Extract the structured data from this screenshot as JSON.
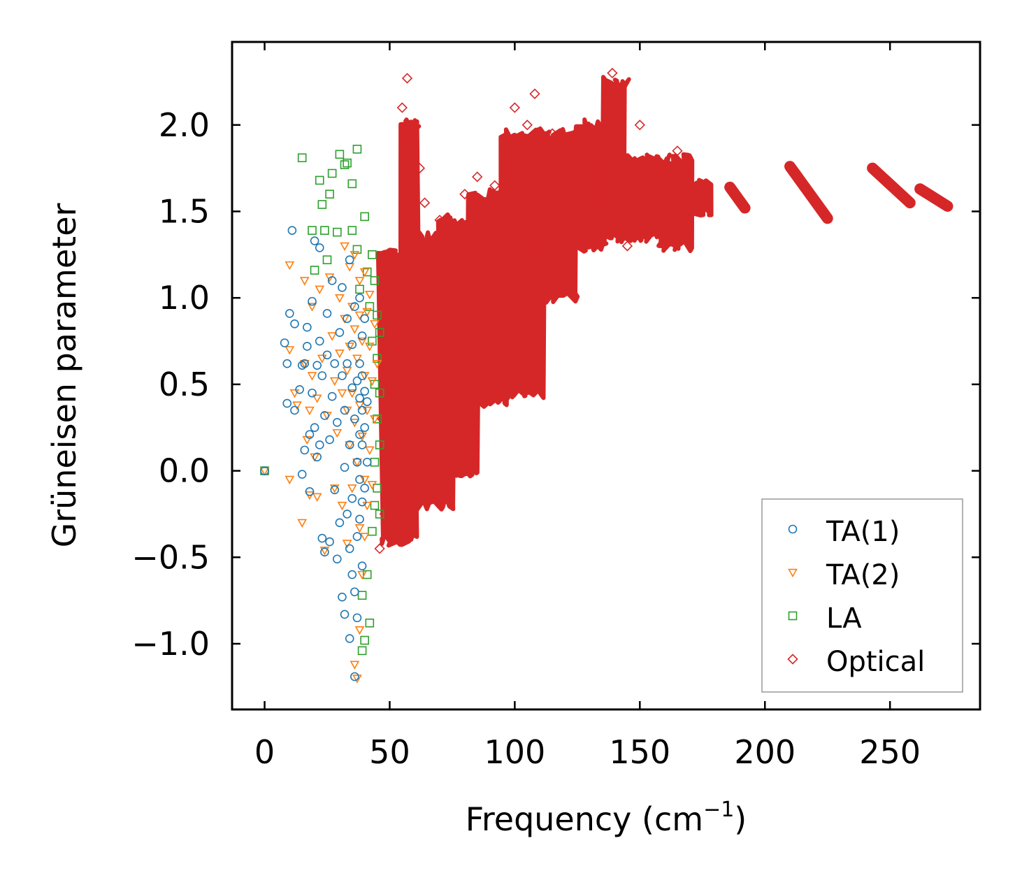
{
  "chart_data": {
    "type": "scatter",
    "title": "",
    "xlabel": "Frequency (cm",
    "xlabel_sup": "−1",
    "xlabel_suffix": ")",
    "ylabel": "Grüneisen parameter",
    "xlim": [
      -13,
      286
    ],
    "ylim": [
      -1.38,
      2.48
    ],
    "xticks": [
      0,
      50,
      100,
      150,
      200,
      250
    ],
    "xtick_labels": [
      "0",
      "50",
      "100",
      "150",
      "200",
      "250"
    ],
    "yticks": [
      -1.0,
      -0.5,
      0.0,
      0.5,
      1.0,
      1.5,
      2.0
    ],
    "ytick_labels": [
      "−1.0",
      "−0.5",
      "0.0",
      "0.5",
      "1.0",
      "1.5",
      "2.0"
    ],
    "grid": false,
    "legend_position": "bottom-right",
    "series": [
      {
        "name": "TA(1)",
        "marker": "circle",
        "color": "#1f77b4",
        "points": [
          [
            0,
            0
          ],
          [
            8,
            0.74
          ],
          [
            9,
            0.62
          ],
          [
            10,
            0.91
          ],
          [
            11,
            1.39
          ],
          [
            12,
            0.85
          ],
          [
            9,
            0.39
          ],
          [
            12,
            0.35
          ],
          [
            14,
            0.47
          ],
          [
            15,
            0.61
          ],
          [
            15,
            -0.02
          ],
          [
            16,
            0.12
          ],
          [
            16,
            0.62
          ],
          [
            17,
            0.83
          ],
          [
            17,
            0.72
          ],
          [
            18,
            0.21
          ],
          [
            18,
            -0.12
          ],
          [
            19,
            0.98
          ],
          [
            19,
            0.45
          ],
          [
            20,
            1.33
          ],
          [
            20,
            0.25
          ],
          [
            21,
            0.61
          ],
          [
            21,
            0.08
          ],
          [
            22,
            1.29
          ],
          [
            22,
            0.75
          ],
          [
            22,
            0.15
          ],
          [
            23,
            0.55
          ],
          [
            23,
            -0.39
          ],
          [
            24,
            -0.47
          ],
          [
            24,
            0.32
          ],
          [
            25,
            0.67
          ],
          [
            25,
            0.91
          ],
          [
            26,
            0.18
          ],
          [
            26,
            -0.41
          ],
          [
            27,
            0.43
          ],
          [
            27,
            1.1
          ],
          [
            28,
            -0.11
          ],
          [
            28,
            0.62
          ],
          [
            29,
            0.28
          ],
          [
            29,
            -0.51
          ],
          [
            30,
            0.8
          ],
          [
            30,
            -0.3
          ],
          [
            31,
            0.55
          ],
          [
            31,
            1.06
          ],
          [
            31,
            -0.73
          ],
          [
            32,
            0.35
          ],
          [
            32,
            0.02
          ],
          [
            32,
            -0.83
          ],
          [
            33,
            0.62
          ],
          [
            33,
            -0.25
          ],
          [
            33,
            0.88
          ],
          [
            34,
            0.15
          ],
          [
            34,
            -0.45
          ],
          [
            34,
            1.22
          ],
          [
            34,
            -0.97
          ],
          [
            35,
            0.48
          ],
          [
            35,
            0.73
          ],
          [
            35,
            -0.16
          ],
          [
            35,
            -0.6
          ],
          [
            36,
            0.3
          ],
          [
            36,
            0.95
          ],
          [
            36,
            -0.7
          ],
          [
            36,
            -1.19
          ],
          [
            37,
            0.52
          ],
          [
            37,
            0.05
          ],
          [
            37,
            -0.38
          ],
          [
            37,
            -0.85
          ],
          [
            38,
            0.62
          ],
          [
            38,
            0.42
          ],
          [
            38,
            0.21
          ],
          [
            38,
            -0.05
          ],
          [
            38,
            -0.28
          ],
          [
            38,
            1.0
          ],
          [
            39,
            0.55
          ],
          [
            39,
            0.35
          ],
          [
            39,
            0.15
          ],
          [
            39,
            -0.18
          ],
          [
            39,
            -0.55
          ],
          [
            39,
            0.78
          ],
          [
            40,
            0.46
          ],
          [
            40,
            0.25
          ],
          [
            40,
            -0.1
          ],
          [
            40,
            0.88
          ],
          [
            41,
            0.4
          ],
          [
            41,
            0.05
          ]
        ]
      },
      {
        "name": "TA(2)",
        "marker": "triangle-down",
        "color": "#ff7f0e",
        "points": [
          [
            0,
            0
          ],
          [
            10,
            1.19
          ],
          [
            10,
            0.7
          ],
          [
            10,
            -0.05
          ],
          [
            12,
            0.45
          ],
          [
            13,
            0.38
          ],
          [
            15,
            -0.3
          ],
          [
            16,
            1.1
          ],
          [
            16,
            0.62
          ],
          [
            17,
            0.18
          ],
          [
            18,
            -0.14
          ],
          [
            18,
            0.35
          ],
          [
            19,
            0.95
          ],
          [
            19,
            0.55
          ],
          [
            20,
            0.08
          ],
          [
            21,
            -0.15
          ],
          [
            21,
            0.42
          ],
          [
            22,
            1.05
          ],
          [
            23,
            0.65
          ],
          [
            24,
            -0.46
          ],
          [
            25,
            0.32
          ],
          [
            26,
            1.12
          ],
          [
            27,
            0.78
          ],
          [
            28,
            0.52
          ],
          [
            28,
            -0.1
          ],
          [
            29,
            0.22
          ],
          [
            30,
            1.0
          ],
          [
            30,
            0.68
          ],
          [
            31,
            0.45
          ],
          [
            31,
            -0.2
          ],
          [
            32,
            1.3
          ],
          [
            32,
            0.88
          ],
          [
            33,
            0.58
          ],
          [
            33,
            0.35
          ],
          [
            33,
            -0.42
          ],
          [
            34,
            1.18
          ],
          [
            34,
            0.72
          ],
          [
            34,
            0.15
          ],
          [
            35,
            0.95
          ],
          [
            35,
            0.45
          ],
          [
            35,
            -0.1
          ],
          [
            36,
            1.25
          ],
          [
            36,
            0.82
          ],
          [
            36,
            0.28
          ],
          [
            36,
            -1.12
          ],
          [
            37,
            0.65
          ],
          [
            37,
            0.05
          ],
          [
            37,
            -1.2
          ],
          [
            38,
            1.1
          ],
          [
            38,
            0.9
          ],
          [
            38,
            0.38
          ],
          [
            38,
            -0.33
          ],
          [
            38,
            -0.92
          ],
          [
            39,
            0.75
          ],
          [
            39,
            0.2
          ],
          [
            39,
            -0.6
          ],
          [
            40,
            1.15
          ],
          [
            40,
            0.55
          ],
          [
            40,
            -0.05
          ],
          [
            40,
            -0.38
          ],
          [
            41,
            0.92
          ],
          [
            41,
            0.35
          ],
          [
            41,
            -0.2
          ],
          [
            42,
            0.72
          ],
          [
            42,
            0.12
          ],
          [
            42,
            1.02
          ],
          [
            43,
            0.52
          ],
          [
            43,
            -0.08
          ],
          [
            44,
            0.85
          ],
          [
            44,
            0.3
          ],
          [
            45,
            0.62
          ]
        ]
      },
      {
        "name": "LA",
        "marker": "square",
        "color": "#2ca02c",
        "points": [
          [
            0,
            0
          ],
          [
            15,
            1.81
          ],
          [
            19,
            1.39
          ],
          [
            20,
            1.16
          ],
          [
            22,
            1.68
          ],
          [
            23,
            1.54
          ],
          [
            24,
            1.39
          ],
          [
            25,
            1.22
          ],
          [
            26,
            1.6
          ],
          [
            27,
            1.72
          ],
          [
            29,
            1.38
          ],
          [
            30,
            1.83
          ],
          [
            32,
            1.77
          ],
          [
            33,
            1.78
          ],
          [
            35,
            1.66
          ],
          [
            35,
            1.39
          ],
          [
            37,
            1.86
          ],
          [
            37,
            1.28
          ],
          [
            38,
            1.05
          ],
          [
            39,
            -0.72
          ],
          [
            39,
            -1.04
          ],
          [
            40,
            -0.98
          ],
          [
            40,
            1.47
          ],
          [
            41,
            1.15
          ],
          [
            41,
            -0.6
          ],
          [
            42,
            0.95
          ],
          [
            42,
            -0.88
          ],
          [
            43,
            1.25
          ],
          [
            43,
            0.75
          ],
          [
            43,
            -0.35
          ],
          [
            44,
            1.1
          ],
          [
            44,
            0.5
          ],
          [
            44,
            0.05
          ],
          [
            44,
            -0.2
          ],
          [
            45,
            0.9
          ],
          [
            45,
            0.65
          ],
          [
            45,
            0.3
          ],
          [
            45,
            -0.1
          ],
          [
            46,
            0.8
          ],
          [
            46,
            0.45
          ],
          [
            46,
            0.15
          ],
          [
            46,
            -0.25
          ]
        ]
      },
      {
        "name": "Optical",
        "marker": "diamond",
        "color": "#d62728",
        "points": [
          [
            46,
            -0.45
          ],
          [
            47,
            0.3
          ],
          [
            48,
            -0.25
          ],
          [
            50,
            1.2
          ],
          [
            52,
            -0.1
          ],
          [
            55,
            2.1
          ],
          [
            56,
            1.9
          ],
          [
            57,
            2.27
          ],
          [
            58,
            -0.36
          ],
          [
            60,
            -0.18
          ],
          [
            62,
            1.75
          ],
          [
            64,
            1.55
          ],
          [
            65,
            -0.12
          ],
          [
            70,
            1.45
          ],
          [
            72,
            0.05
          ],
          [
            80,
            1.6
          ],
          [
            85,
            1.7
          ],
          [
            88,
            0.85
          ],
          [
            92,
            1.65
          ],
          [
            96,
            0.42
          ],
          [
            100,
            2.1
          ],
          [
            105,
            2.0
          ],
          [
            108,
            2.18
          ],
          [
            110,
            1.3
          ],
          [
            115,
            1.95
          ],
          [
            120,
            1.25
          ],
          [
            130,
            1.7
          ],
          [
            135,
            1.5
          ],
          [
            139,
            2.3
          ],
          [
            140,
            2.15
          ],
          [
            145,
            1.3
          ],
          [
            150,
            2.0
          ],
          [
            160,
            1.55
          ],
          [
            165,
            1.85
          ],
          [
            172,
            1.6
          ],
          [
            175,
            1.52
          ]
        ],
        "clusters": [
          {
            "x": [
              46,
              60
            ],
            "ymin": -0.4,
            "ymax": 1.25
          },
          {
            "x": [
              55,
              62
            ],
            "ymin": -0.2,
            "ymax": 2.0
          },
          {
            "x": [
              60,
              75
            ],
            "ymin": -0.2,
            "ymax": 1.35
          },
          {
            "x": [
              70,
              85
            ],
            "ymin": 0.0,
            "ymax": 1.45
          },
          {
            "x": [
              82,
              97
            ],
            "ymin": 0.4,
            "ymax": 1.6
          },
          {
            "x": [
              95,
              112
            ],
            "ymin": 0.45,
            "ymax": 1.95
          },
          {
            "x": [
              108,
              125
            ],
            "ymin": 1.0,
            "ymax": 1.95
          },
          {
            "x": [
              125,
              137
            ],
            "ymin": 1.3,
            "ymax": 2.0
          },
          {
            "x": [
              136,
              145
            ],
            "ymin": 1.35,
            "ymax": 2.25
          },
          {
            "x": [
              145,
              158
            ],
            "ymin": 1.35,
            "ymax": 1.8
          },
          {
            "x": [
              158,
              170
            ],
            "ymin": 1.3,
            "ymax": 1.8
          },
          {
            "x": [
              170,
              178
            ],
            "ymin": 1.5,
            "ymax": 1.65
          }
        ],
        "bands": [
          {
            "x0": 186,
            "y0": 1.64,
            "x1": 192,
            "y1": 1.52
          },
          {
            "x0": 210,
            "y0": 1.76,
            "x1": 225,
            "y1": 1.46
          },
          {
            "x0": 243,
            "y0": 1.75,
            "x1": 258,
            "y1": 1.55
          },
          {
            "x0": 262,
            "y0": 1.63,
            "x1": 273,
            "y1": 1.53
          }
        ]
      }
    ]
  }
}
